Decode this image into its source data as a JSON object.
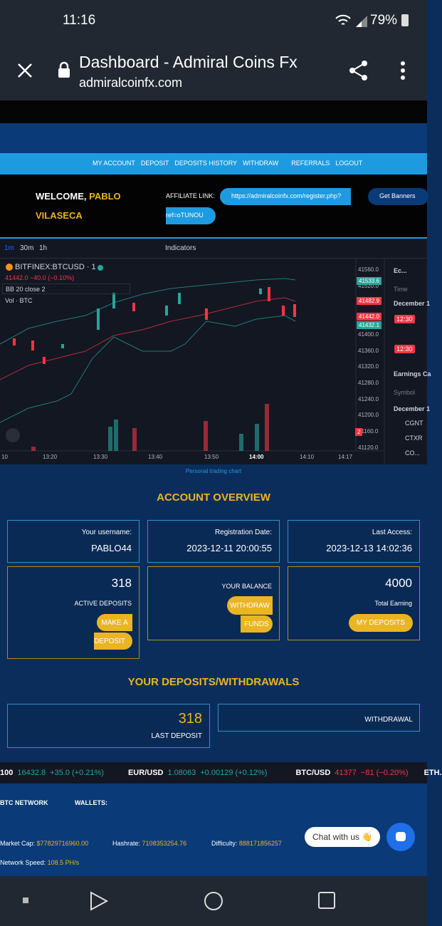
{
  "status_bar": {
    "time": "11:16",
    "battery": "79%"
  },
  "browser": {
    "title": "Dashboard - Admiral Coins Fx",
    "url": "admiralcoinfx.com"
  },
  "nav": [
    "MY ACCOUNT",
    "DEPOSIT",
    "DEPOSITS HISTORY",
    "WITHDRAW",
    "REFERRALS",
    "LOGOUT"
  ],
  "welcome": {
    "greeting": "WELCOME,",
    "first_name": "PABLO",
    "last_name": "VILASECA",
    "affiliate_label": "AFFILIATE LINK:",
    "affiliate_link_1": "https://admiralcoinfx.com/register.php?",
    "affiliate_link_2": "ref=oTUNOU",
    "banners_button": "Get Banners"
  },
  "chart_widget": {
    "toolbar": [
      "1m",
      "30m",
      "1h",
      "Indicators"
    ],
    "symbol": "BITFINEX:BTCUSD · 1",
    "quote": "41442.0 −40.0 (−0.10%)",
    "indicator": "BB 20 close 2",
    "volume": "Vol · BTC",
    "price_axis": [
      "41560.0",
      "41520.0",
      "41480.0",
      "41440.0",
      "41400.0",
      "41360.0",
      "41320.0",
      "41280.0",
      "41240.0",
      "41200.0",
      "41160.0",
      "41120.0"
    ],
    "price_tags": [
      "41533.6",
      "41482.9",
      "41442.0",
      "41432.1",
      "2"
    ],
    "time_axis": [
      "10",
      "13:20",
      "13:30",
      "13:40",
      "13:50",
      "14:00",
      "14:10",
      "14:17"
    ],
    "side_panel": {
      "title": "Ec...",
      "time_header": "Time",
      "date_1": "December 1",
      "event_time_1": "12:30",
      "event_time_2": "12:30",
      "earnings_title": "Earnings Ca",
      "symbol_header": "Symbol",
      "date_2": "December 1",
      "symbols": [
        "CGNT",
        "CTXR",
        "CO..."
      ]
    },
    "caption": "Personal trading chart"
  },
  "overview": {
    "title": "ACCOUNT OVERVIEW",
    "username_label": "Your username:",
    "username": "PABLO44",
    "registration_label": "Registration Date:",
    "registration": "2023-12-11 20:00:55",
    "access_label": "Last Access:",
    "access": "2023-12-13 14:02:36",
    "active_deposits": "318",
    "active_deposits_label": "ACTIVE DEPOSITS",
    "make_deposit_1": "MAKE A",
    "make_deposit_2": "DEPOSIT",
    "balance_label": "YOUR BALANCE",
    "withdraw_1": "WITHDRAW",
    "withdraw_2": "FUNDS",
    "total_earning": "4000",
    "total_earning_label": "Total Earning",
    "my_deposits": "MY DEPOSITS"
  },
  "deposits": {
    "title": "YOUR DEPOSITS/WITHDRAWALS",
    "last_deposit": "318",
    "last_deposit_label": "LAST DEPOSIT",
    "withdrawal_label": "WITHDRAWAL"
  },
  "ticker": [
    {
      "symbol": "100",
      "price": "16432.8",
      "change": "+35.0 (+0.21%)",
      "up": true
    },
    {
      "symbol": "EUR/USD",
      "price": "1.08063",
      "change": "+0.00129 (+0.12%)",
      "up": true
    },
    {
      "symbol": "BTC/USD",
      "price": "41377",
      "change": "−81 (−0.20%)",
      "up": false
    },
    {
      "symbol": "ETH.",
      "price": "",
      "change": "",
      "up": true
    }
  ],
  "footer": {
    "network": "BTC NETWORK",
    "wallets": "WALLETS:",
    "market_cap_label": "Market Cap:",
    "market_cap": "$77829716960.00",
    "hashrate_label": "Hashrate:",
    "hashrate": "7108353254.76",
    "difficulty_label": "Difficulty:",
    "difficulty": "888171856257",
    "speed_label": "Network Speed:",
    "speed": "108.5 PH/s",
    "chat": "Chat with us 👋"
  }
}
